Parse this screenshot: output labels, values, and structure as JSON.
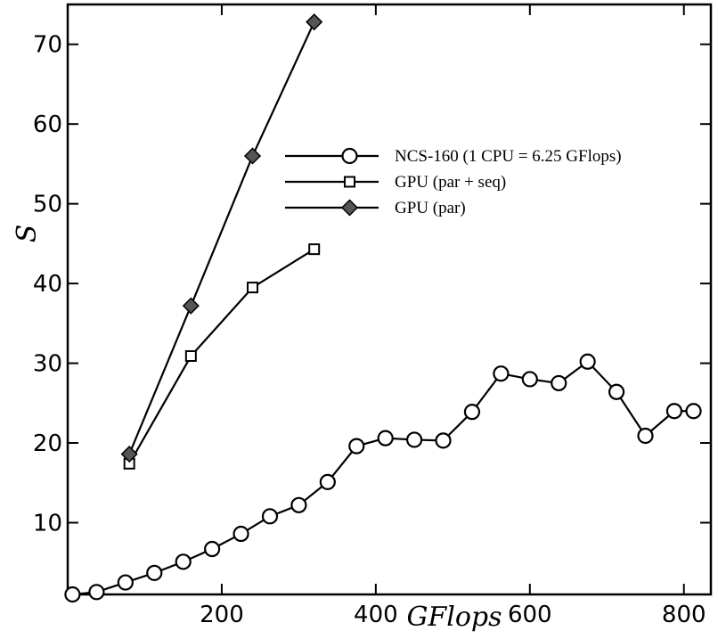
{
  "chart_data": {
    "type": "line",
    "xlabel": "GFlops",
    "ylabel": "S",
    "xlim": [
      0,
      835
    ],
    "ylim": [
      1,
      75
    ],
    "xticks": [
      200,
      400,
      600,
      800
    ],
    "yticks": [
      10,
      20,
      30,
      40,
      50,
      60,
      70
    ],
    "xtick_labels": [
      "200",
      "400",
      "600",
      "800"
    ],
    "ytick_labels": [
      "10",
      "20",
      "30",
      "40",
      "50",
      "60",
      "70"
    ],
    "grid": false,
    "legend_position": "upper-right",
    "series": [
      {
        "name": "NCS-160 (1 CPU = 6.25 GFlops)",
        "marker": "circle",
        "color": "#000000",
        "x": [
          6.25,
          37.5,
          75,
          112.5,
          150,
          187.5,
          225,
          262.5,
          300,
          337.5,
          375,
          412.5,
          450,
          487.5,
          525,
          562.5,
          600,
          637.5,
          675,
          712.5,
          750,
          787.5,
          812.5
        ],
        "y": [
          1.0,
          1.3,
          2.5,
          3.7,
          5.1,
          6.7,
          8.6,
          10.8,
          12.2,
          15.1,
          19.6,
          20.6,
          20.4,
          20.3,
          23.9,
          28.7,
          28.0,
          27.5,
          30.2,
          26.4,
          20.9,
          24.0,
          24.0
        ]
      },
      {
        "name": "GPU  (par + seq)",
        "marker": "square",
        "color": "#000000",
        "x": [
          80,
          160,
          240,
          320
        ],
        "y": [
          17.4,
          30.9,
          39.5,
          44.3
        ]
      },
      {
        "name": "GPU (par)",
        "marker": "diamond",
        "color": "#555555",
        "x": [
          80,
          160,
          240,
          320
        ],
        "y": [
          18.6,
          37.2,
          56.0,
          72.8
        ]
      }
    ]
  }
}
